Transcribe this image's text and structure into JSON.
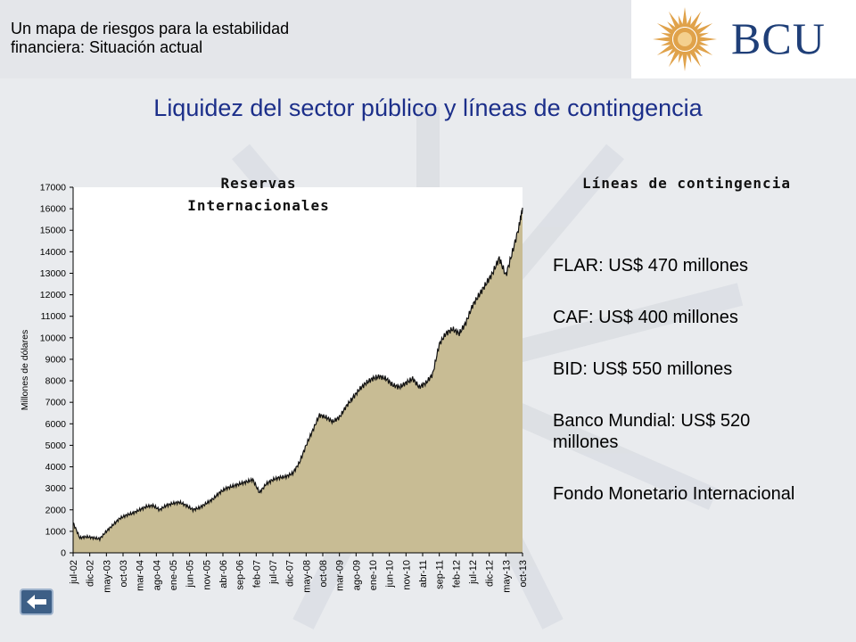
{
  "header": {
    "subtitle": "Un mapa de riesgos para la estabilidad financiera: Situación actual",
    "logo_text": "BCU",
    "brand_color": "#1f3f78",
    "sun_color": "#e0a24a"
  },
  "slide": {
    "title": "Liquidez del sector público y líneas de contingencia",
    "title_color": "#1c2f8a"
  },
  "chart_data": {
    "type": "area",
    "title": "Reservas Internacionales",
    "ylabel": "Millones de dólares",
    "xlabel": "",
    "ylim": [
      0,
      17000
    ],
    "yticks": [
      0,
      1000,
      2000,
      3000,
      4000,
      5000,
      6000,
      7000,
      8000,
      9000,
      10000,
      11000,
      12000,
      13000,
      14000,
      15000,
      16000,
      17000
    ],
    "xrange": [
      "2002-07",
      "2013-10"
    ],
    "xtick_labels": [
      "jul-02",
      "dic-02",
      "may-03",
      "oct-03",
      "mar-04",
      "ago-04",
      "ene-05",
      "jun-05",
      "nov-05",
      "abr-06",
      "sep-06",
      "feb-07",
      "jul-07",
      "dic-07",
      "may-08",
      "oct-08",
      "mar-09",
      "ago-09",
      "ene-10",
      "jun-10",
      "nov-10",
      "abr-11",
      "sep-11",
      "feb-12",
      "jul-12",
      "dic-12",
      "may-13",
      "oct-13"
    ],
    "fill_color": "#c8bc94",
    "line_color": "#111111",
    "grid": false,
    "series": [
      {
        "x": [
          "2002-07",
          "2002-09",
          "2002-11",
          "2003-01",
          "2003-03",
          "2003-05",
          "2003-07",
          "2003-09",
          "2003-11",
          "2004-01",
          "2004-03",
          "2004-05",
          "2004-07",
          "2004-09",
          "2004-11",
          "2005-01",
          "2005-03",
          "2005-05",
          "2005-07",
          "2005-09",
          "2005-11",
          "2006-01",
          "2006-03",
          "2006-05",
          "2006-07",
          "2006-09",
          "2006-11",
          "2007-01",
          "2007-03",
          "2007-05",
          "2007-07",
          "2007-09",
          "2007-11",
          "2008-01",
          "2008-03",
          "2008-05",
          "2008-07",
          "2008-09",
          "2008-11",
          "2009-01",
          "2009-03",
          "2009-05",
          "2009-07",
          "2009-09",
          "2009-11",
          "2010-01",
          "2010-03",
          "2010-05",
          "2010-07",
          "2010-09",
          "2010-11",
          "2011-01",
          "2011-03",
          "2011-05",
          "2011-07",
          "2011-09",
          "2011-11",
          "2012-01",
          "2012-03",
          "2012-05",
          "2012-07",
          "2012-09",
          "2012-11",
          "2013-01",
          "2013-03",
          "2013-05",
          "2013-07",
          "2013-09",
          "2013-10"
        ],
        "values": [
          1400,
          700,
          750,
          700,
          650,
          1000,
          1300,
          1600,
          1750,
          1850,
          2000,
          2150,
          2200,
          2000,
          2200,
          2300,
          2350,
          2200,
          2000,
          2100,
          2300,
          2500,
          2800,
          3000,
          3100,
          3200,
          3300,
          3400,
          2800,
          3200,
          3400,
          3500,
          3550,
          3700,
          4200,
          5000,
          5700,
          6400,
          6300,
          6100,
          6300,
          6800,
          7200,
          7600,
          7900,
          8100,
          8200,
          8100,
          7800,
          7700,
          7900,
          8100,
          7700,
          7900,
          8300,
          9700,
          10200,
          10400,
          10200,
          10700,
          11500,
          12000,
          12500,
          13000,
          13700,
          12900,
          14000,
          15200,
          16050
        ]
      }
    ]
  },
  "contingency": {
    "title": "Líneas de contingencia",
    "items": [
      "FLAR: US$ 470 millones",
      "CAF: US$ 400 millones",
      "BID: US$ 550 millones",
      "Banco Mundial: US$ 520 millones",
      "Fondo Monetario Internacional"
    ]
  },
  "nav": {
    "back_icon": "back-arrow-icon"
  }
}
